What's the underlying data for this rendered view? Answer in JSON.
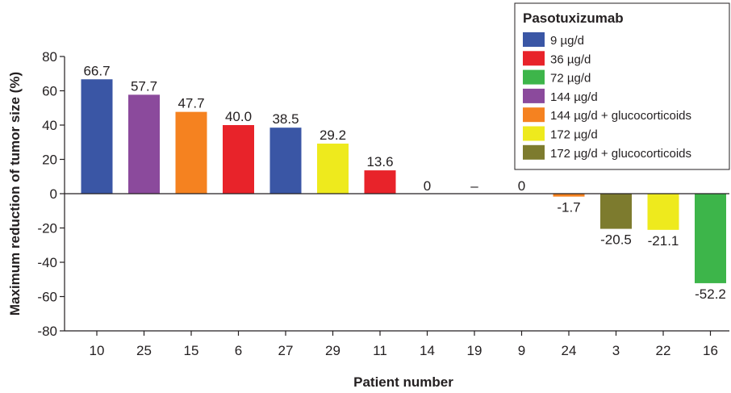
{
  "chart_data": {
    "type": "bar",
    "xlabel": "Patient number",
    "ylabel": "Maximum reduction of tumor size (%)",
    "ylim": [
      -80,
      80
    ],
    "yticks": [
      "80",
      "60",
      "40",
      "20",
      "0",
      "-20",
      "-40",
      "-60",
      "-80"
    ],
    "grid": false,
    "legend_position": "top-right",
    "legend_title": "Pasotuxizumab",
    "legend": [
      {
        "name": "9 µg/d",
        "color": "#3a56a5"
      },
      {
        "name": "36 µg/d",
        "color": "#e8232a"
      },
      {
        "name": "72 µg/d",
        "color": "#3db54a"
      },
      {
        "name": "144 µg/d",
        "color": "#8b4a9c"
      },
      {
        "name": "144 µg/d + glucocorticoids",
        "color": "#f58220"
      },
      {
        "name": "172 µg/d",
        "color": "#eeea1d"
      },
      {
        "name": "172 µg/d + glucocorticoids",
        "color": "#7d7b2e"
      }
    ],
    "categories": [
      "10",
      "25",
      "15",
      "6",
      "27",
      "29",
      "11",
      "14",
      "19",
      "9",
      "24",
      "3",
      "22",
      "16"
    ],
    "values": [
      66.7,
      57.7,
      47.7,
      40.0,
      38.5,
      29.2,
      13.6,
      0,
      null,
      0,
      -1.7,
      -20.5,
      -21.1,
      -52.2
    ],
    "data_labels": [
      "66.7",
      "57.7",
      "47.7",
      "40.0",
      "38.5",
      "29.2",
      "13.6",
      "0",
      "–",
      "0",
      "-1.7",
      "-20.5",
      "-21.1",
      "-52.2"
    ],
    "bar_groups": [
      "9 µg/d",
      "144 µg/d",
      "144 µg/d + glucocorticoids",
      "36 µg/d",
      "9 µg/d",
      "172 µg/d",
      "36 µg/d",
      null,
      null,
      null,
      "144 µg/d + glucocorticoids",
      "172 µg/d + glucocorticoids",
      "172 µg/d",
      "72 µg/d"
    ]
  }
}
